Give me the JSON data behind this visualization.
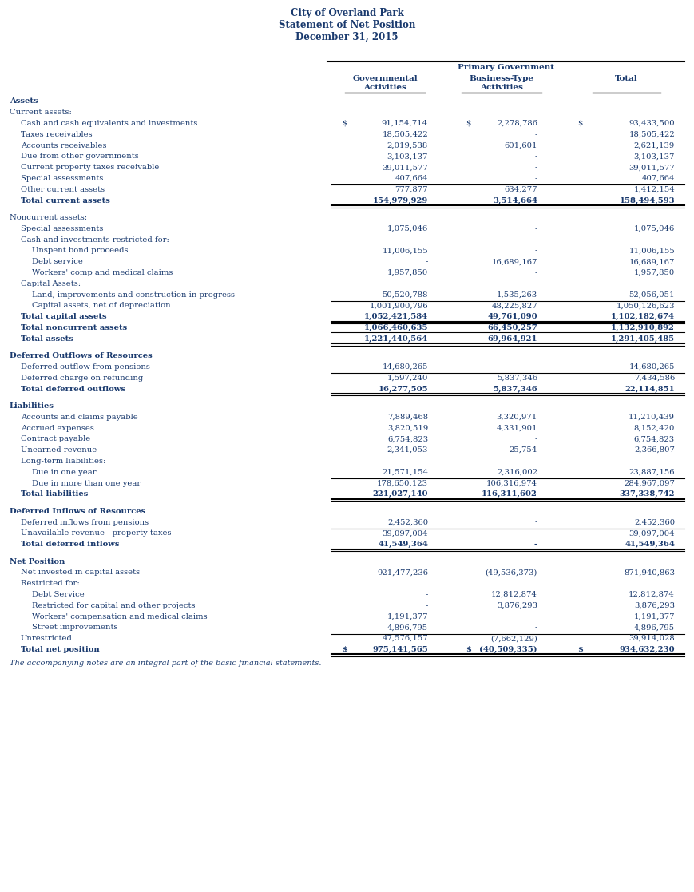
{
  "title": [
    "City of Overland Park",
    "Statement of Net Position",
    "December 31, 2015"
  ],
  "header_primary": "Primary Government",
  "col_headers_line1": [
    "Governmental",
    "Business-Type",
    "Total"
  ],
  "col_headers_line2": [
    "Activities",
    "Activities",
    ""
  ],
  "text_color": "#1a3a6e",
  "bg_color": "#ffffff",
  "rows": [
    {
      "label": "Assets",
      "indent": 0,
      "bold": true,
      "gov": "",
      "bus": "",
      "tot": ""
    },
    {
      "label": "Current assets:",
      "indent": 0,
      "bold": false,
      "gov": "",
      "bus": "",
      "tot": ""
    },
    {
      "label": "Cash and cash equivalents and investments",
      "indent": 1,
      "bold": false,
      "gov": "91,154,714",
      "bus": "2,278,786",
      "tot": "93,433,500",
      "dollar_gov": true,
      "dollar_bus": true,
      "dollar_tot": true
    },
    {
      "label": "Taxes receivables",
      "indent": 1,
      "bold": false,
      "gov": "18,505,422",
      "bus": "-",
      "tot": "18,505,422"
    },
    {
      "label": "Accounts receivables",
      "indent": 1,
      "bold": false,
      "gov": "2,019,538",
      "bus": "601,601",
      "tot": "2,621,139"
    },
    {
      "label": "Due from other governments",
      "indent": 1,
      "bold": false,
      "gov": "3,103,137",
      "bus": "-",
      "tot": "3,103,137"
    },
    {
      "label": "Current property taxes receivable",
      "indent": 1,
      "bold": false,
      "gov": "39,011,577",
      "bus": "-",
      "tot": "39,011,577"
    },
    {
      "label": "Special assessments",
      "indent": 1,
      "bold": false,
      "gov": "407,664",
      "bus": "-",
      "tot": "407,664"
    },
    {
      "label": "Other current assets",
      "indent": 1,
      "bold": false,
      "gov": "777,877",
      "bus": "634,277",
      "tot": "1,412,154",
      "line_above_thin": true
    },
    {
      "label": "Total current assets",
      "indent": 1,
      "bold": true,
      "gov": "154,979,929",
      "bus": "3,514,664",
      "tot": "158,494,593",
      "line_below_double": true,
      "space_after": true
    },
    {
      "label": "Noncurrent assets:",
      "indent": 0,
      "bold": false,
      "gov": "",
      "bus": "",
      "tot": ""
    },
    {
      "label": "Special assessments",
      "indent": 1,
      "bold": false,
      "gov": "1,075,046",
      "bus": "-",
      "tot": "1,075,046"
    },
    {
      "label": "Cash and investments restricted for:",
      "indent": 1,
      "bold": false,
      "gov": "",
      "bus": "",
      "tot": ""
    },
    {
      "label": "Unspent bond proceeds",
      "indent": 2,
      "bold": false,
      "gov": "11,006,155",
      "bus": "-",
      "tot": "11,006,155"
    },
    {
      "label": "Debt service",
      "indent": 2,
      "bold": false,
      "gov": "-",
      "bus": "16,689,167",
      "tot": "16,689,167"
    },
    {
      "label": "Workers' comp and medical claims",
      "indent": 2,
      "bold": false,
      "gov": "1,957,850",
      "bus": "-",
      "tot": "1,957,850"
    },
    {
      "label": "Capital Assets:",
      "indent": 1,
      "bold": false,
      "gov": "",
      "bus": "",
      "tot": ""
    },
    {
      "label": "Land, improvements and construction in progress",
      "indent": 2,
      "bold": false,
      "gov": "50,520,788",
      "bus": "1,535,263",
      "tot": "52,056,051"
    },
    {
      "label": "Capital assets, net of depreciation",
      "indent": 2,
      "bold": false,
      "gov": "1,001,900,796",
      "bus": "48,225,827",
      "tot": "1,050,126,623",
      "line_above_thin": true
    },
    {
      "label": "Total capital assets",
      "indent": 1,
      "bold": true,
      "gov": "1,052,421,584",
      "bus": "49,761,090",
      "tot": "1,102,182,674",
      "line_below_double": true
    },
    {
      "label": "Total noncurrent assets",
      "indent": 1,
      "bold": true,
      "gov": "1,066,460,635",
      "bus": "66,450,257",
      "tot": "1,132,910,892",
      "line_below_single": true
    },
    {
      "label": "Total assets",
      "indent": 1,
      "bold": true,
      "gov": "1,221,440,564",
      "bus": "69,964,921",
      "tot": "1,291,405,485",
      "line_below_double": true,
      "space_after": true
    },
    {
      "label": "Deferred Outflows of Resources",
      "indent": 0,
      "bold": true,
      "gov": "",
      "bus": "",
      "tot": ""
    },
    {
      "label": "Deferred outflow from pensions",
      "indent": 1,
      "bold": false,
      "gov": "14,680,265",
      "bus": "-",
      "tot": "14,680,265"
    },
    {
      "label": "Deferred charge on refunding",
      "indent": 1,
      "bold": false,
      "gov": "1,597,240",
      "bus": "5,837,346",
      "tot": "7,434,586",
      "line_above_thin": true
    },
    {
      "label": "Total deferred outflows",
      "indent": 1,
      "bold": true,
      "gov": "16,277,505",
      "bus": "5,837,346",
      "tot": "22,114,851",
      "line_below_double": true,
      "space_after": true
    },
    {
      "label": "Liabilities",
      "indent": 0,
      "bold": true,
      "gov": "",
      "bus": "",
      "tot": ""
    },
    {
      "label": "Accounts and claims payable",
      "indent": 1,
      "bold": false,
      "gov": "7,889,468",
      "bus": "3,320,971",
      "tot": "11,210,439"
    },
    {
      "label": "Accrued expenses",
      "indent": 1,
      "bold": false,
      "gov": "3,820,519",
      "bus": "4,331,901",
      "tot": "8,152,420"
    },
    {
      "label": "Contract payable",
      "indent": 1,
      "bold": false,
      "gov": "6,754,823",
      "bus": "-",
      "tot": "6,754,823"
    },
    {
      "label": "Unearned revenue",
      "indent": 1,
      "bold": false,
      "gov": "2,341,053",
      "bus": "25,754",
      "tot": "2,366,807"
    },
    {
      "label": "Long-term liabilities:",
      "indent": 1,
      "bold": false,
      "gov": "",
      "bus": "",
      "tot": ""
    },
    {
      "label": "Due in one year",
      "indent": 2,
      "bold": false,
      "gov": "21,571,154",
      "bus": "2,316,002",
      "tot": "23,887,156"
    },
    {
      "label": "Due in more than one year",
      "indent": 2,
      "bold": false,
      "gov": "178,650,123",
      "bus": "106,316,974",
      "tot": "284,967,097",
      "line_above_thin": true
    },
    {
      "label": "Total liabilities",
      "indent": 1,
      "bold": true,
      "gov": "221,027,140",
      "bus": "116,311,602",
      "tot": "337,338,742",
      "line_below_double": true,
      "space_after": true
    },
    {
      "label": "Deferred Inflows of Resources",
      "indent": 0,
      "bold": true,
      "gov": "",
      "bus": "",
      "tot": ""
    },
    {
      "label": "Deferred inflows from pensions",
      "indent": 1,
      "bold": false,
      "gov": "2,452,360",
      "bus": "-",
      "tot": "2,452,360"
    },
    {
      "label": "Unavailable revenue - property taxes",
      "indent": 1,
      "bold": false,
      "gov": "39,097,004",
      "bus": "-",
      "tot": "39,097,004",
      "line_above_thin": true
    },
    {
      "label": "Total deferred inflows",
      "indent": 1,
      "bold": true,
      "gov": "41,549,364",
      "bus": "-",
      "tot": "41,549,364",
      "line_below_double": true,
      "space_after": true
    },
    {
      "label": "Net Position",
      "indent": 0,
      "bold": true,
      "gov": "",
      "bus": "",
      "tot": ""
    },
    {
      "label": "Net invested in capital assets",
      "indent": 1,
      "bold": false,
      "gov": "921,477,236",
      "bus": "(49,536,373)",
      "tot": "871,940,863"
    },
    {
      "label": "Restricted for:",
      "indent": 1,
      "bold": false,
      "gov": "",
      "bus": "",
      "tot": ""
    },
    {
      "label": "Debt Service",
      "indent": 2,
      "bold": false,
      "gov": "-",
      "bus": "12,812,874",
      "tot": "12,812,874"
    },
    {
      "label": "Restricted for capital and other projects",
      "indent": 2,
      "bold": false,
      "gov": "-",
      "bus": "3,876,293",
      "tot": "3,876,293"
    },
    {
      "label": "Workers' compensation and medical claims",
      "indent": 2,
      "bold": false,
      "gov": "1,191,377",
      "bus": "-",
      "tot": "1,191,377"
    },
    {
      "label": "Street improvements",
      "indent": 2,
      "bold": false,
      "gov": "4,896,795",
      "bus": "-",
      "tot": "4,896,795"
    },
    {
      "label": "Unrestricted",
      "indent": 1,
      "bold": false,
      "gov": "47,576,157",
      "bus": "(7,662,129)",
      "tot": "39,914,028",
      "line_above_thin": true
    },
    {
      "label": "Total net position",
      "indent": 1,
      "bold": true,
      "gov": "975,141,565",
      "bus": "(40,509,335)",
      "tot": "934,632,230",
      "line_below_double": true,
      "dollar_gov": true,
      "dollar_bus": true,
      "dollar_tot": true
    }
  ],
  "footnote": "The accompanying notes are an integral part of the basic financial statements."
}
